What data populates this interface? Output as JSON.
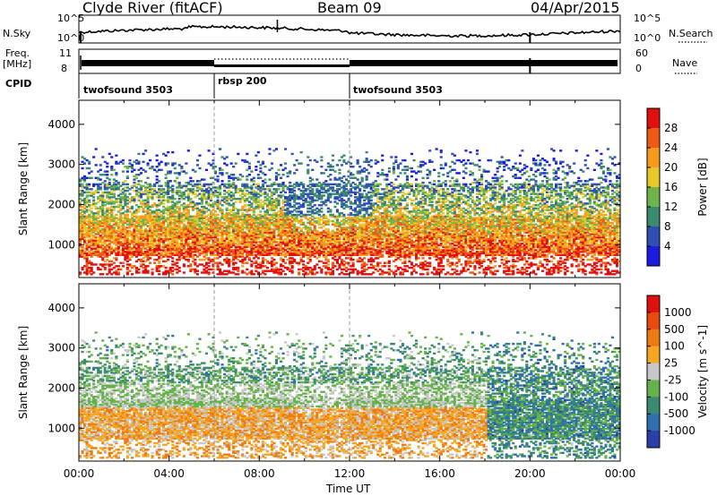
{
  "header": {
    "station": "Clyde River (fitACF)",
    "beam": "Beam 09",
    "date": "04/Apr/2015"
  },
  "panel_labels": {
    "nsky": "N.Sky",
    "freq_line1": "Freq.",
    "freq_line2": "[MHz]",
    "cpid": "CPID",
    "nsearch": "N.Search",
    "nave": "Nave"
  },
  "noise_axis": {
    "left_top": "10^5",
    "left_bottom": "10^0",
    "right_top": "10^5",
    "right_bottom": "10^0"
  },
  "freq_axis": {
    "left_top": "11",
    "left_bottom": "8",
    "right_top": "60",
    "right_bottom": "0"
  },
  "cpid_segments": [
    {
      "label": "twofsound 3503",
      "start_hour": 0,
      "end_hour": 6
    },
    {
      "label": "rbsp 200",
      "start_hour": 6,
      "end_hour": 12
    },
    {
      "label": "twofsound 3503",
      "start_hour": 12,
      "end_hour": 24
    }
  ],
  "chart_data": [
    {
      "type": "heatmap",
      "name": "power",
      "ylabel": "Slant Range [km]",
      "xlabel": "Time UT",
      "x_ticks": [
        "00:00",
        "04:00",
        "08:00",
        "12:00",
        "16:00",
        "20:00",
        "00:00"
      ],
      "y_ticks": [
        "1000",
        "2000",
        "3000",
        "4000"
      ],
      "xlim_hours": [
        0,
        24
      ],
      "ylim_km": [
        180,
        4600
      ],
      "colorbar": {
        "label": "Power [dB]",
        "ticks": [
          "4",
          "8",
          "12",
          "16",
          "20",
          "24",
          "28"
        ],
        "colors": [
          "#1c1ce0",
          "#2f4fb2",
          "#3a8a6e",
          "#6fb44a",
          "#e8c72a",
          "#f59a1e",
          "#ee5a14",
          "#e01010"
        ]
      }
    },
    {
      "type": "heatmap",
      "name": "velocity",
      "ylabel": "Slant Range [km]",
      "xlabel": "Time UT",
      "x_ticks": [
        "00:00",
        "04:00",
        "08:00",
        "12:00",
        "16:00",
        "20:00",
        "00:00"
      ],
      "y_ticks": [
        "1000",
        "2000",
        "3000",
        "4000"
      ],
      "xlim_hours": [
        0,
        24
      ],
      "ylim_km": [
        180,
        4600
      ],
      "colorbar": {
        "label": "Velocity [m s^-1]",
        "ticks": [
          "1000",
          "500",
          "100",
          "25",
          "-25",
          "-100",
          "-500",
          "-1000"
        ],
        "colors": [
          "#2a3fa8",
          "#2f6fb0",
          "#3a8a6e",
          "#66b24a",
          "#c8c8c8",
          "#f5a623",
          "#ee7a14",
          "#e84a10",
          "#e01010"
        ]
      }
    }
  ],
  "x_axis_title": "Time UT"
}
